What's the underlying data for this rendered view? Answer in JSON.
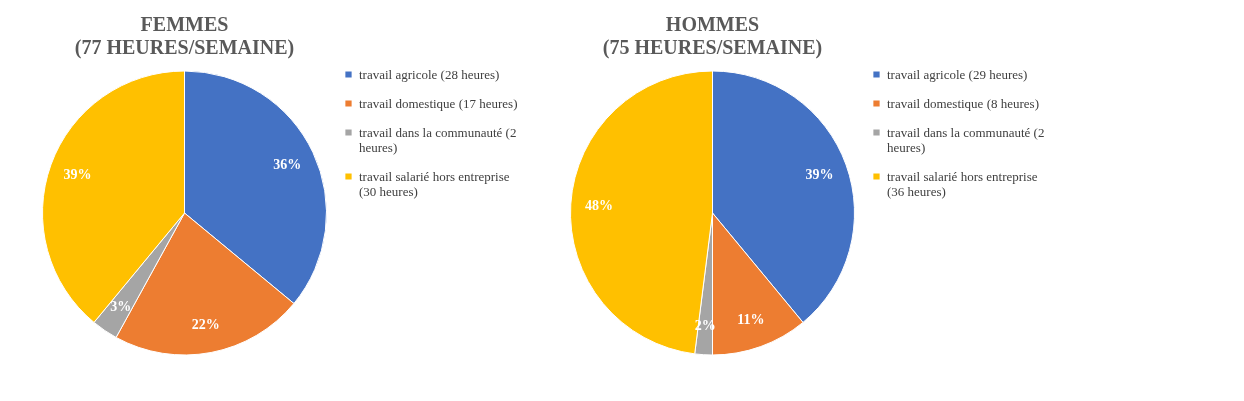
{
  "chart_data": [
    {
      "type": "pie",
      "title": "FEMMES",
      "subtitle": "(77 HEURES/SEMAINE)",
      "categories": [
        "travail agricole (28 heures)",
        "travail domestique (17 heures)",
        "travail dans la communauté (2 heures)",
        "travail salarié hors entreprise (30 heures)"
      ],
      "values": [
        36,
        22,
        3,
        39
      ],
      "value_labels": [
        "36%",
        "22%",
        "3%",
        "39%"
      ],
      "colors": [
        "#4472c4",
        "#ed7d31",
        "#a5a5a5",
        "#ffc000"
      ],
      "legend": "right"
    },
    {
      "type": "pie",
      "title": "HOMMES",
      "subtitle": "(75 HEURES/SEMAINE)",
      "categories": [
        "travail agricole (29 heures)",
        "travail domestique (8 heures)",
        "travail dans la communauté (2 heures)",
        "travail salarié hors entreprise (36 heures)"
      ],
      "values": [
        39,
        11,
        2,
        48
      ],
      "value_labels": [
        "39%",
        "11%",
        "2%",
        "48%"
      ],
      "colors": [
        "#4472c4",
        "#ed7d31",
        "#a5a5a5",
        "#ffc000"
      ],
      "legend": "right"
    }
  ]
}
